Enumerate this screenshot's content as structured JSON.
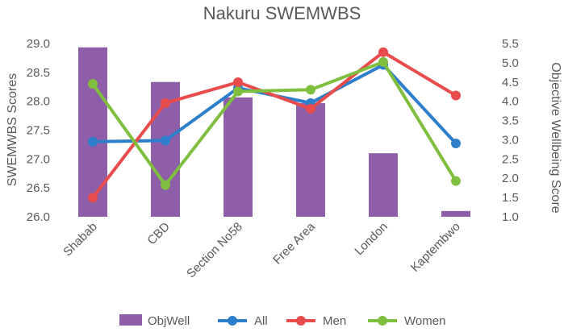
{
  "chart_data": {
    "type": "bar",
    "title": "Nakuru SWEMWBS",
    "categories": [
      "Shabab",
      "CBD",
      "Section No58",
      "Free Area",
      "London",
      "Kaptembwo"
    ],
    "ylabel": "SWEMWBS Scores",
    "y2label": "Objective Wellbeing Score",
    "ylim": [
      26.0,
      29.0
    ],
    "y2lim": [
      1.0,
      5.5
    ],
    "yticks": [
      "26.0",
      "26.5",
      "27.0",
      "27.5",
      "28.0",
      "28.5",
      "29.0"
    ],
    "y2ticks": [
      "1.0",
      "1.5",
      "2.0",
      "2.5",
      "3.0",
      "3.5",
      "4.0",
      "4.5",
      "5.0",
      "5.5"
    ],
    "grid": false,
    "legend": "bottom",
    "series": [
      {
        "name": "ObjWell",
        "type": "bar",
        "axis": "right",
        "color": "#8e5fa8",
        "values": [
          5.4,
          4.5,
          4.1,
          3.95,
          2.65,
          1.15
        ]
      },
      {
        "name": "All",
        "type": "line",
        "axis": "left",
        "color": "#2e7fcb",
        "values": [
          27.3,
          27.32,
          28.23,
          27.97,
          28.63,
          27.27
        ]
      },
      {
        "name": "Men",
        "type": "line",
        "axis": "left",
        "color": "#e84c4c",
        "values": [
          26.33,
          27.97,
          28.33,
          27.87,
          28.85,
          28.1
        ]
      },
      {
        "name": "Women",
        "type": "line",
        "axis": "left",
        "color": "#7fbf3f",
        "values": [
          28.3,
          26.55,
          28.17,
          28.2,
          28.68,
          26.62
        ]
      }
    ]
  }
}
